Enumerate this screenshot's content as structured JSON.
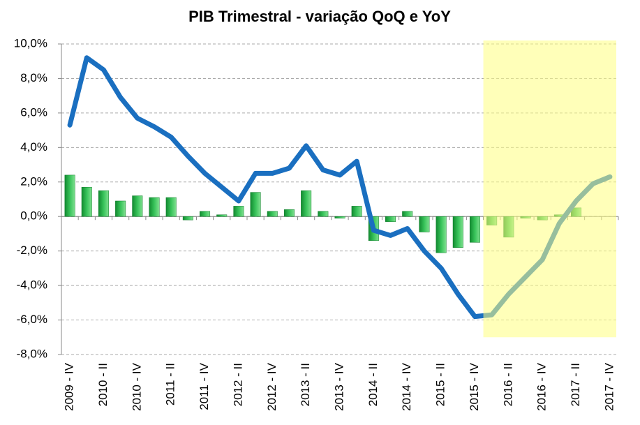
{
  "chart_data": {
    "type": "bar-line",
    "title": "PIB Trimestral - variação QoQ e YoY",
    "categories": [
      "2009 - IV",
      null,
      "2010 - II",
      null,
      "2010 - IV",
      null,
      "2011 - II",
      null,
      "2011 - IV",
      null,
      "2012 - II",
      null,
      "2012 - IV",
      null,
      "2013 - II",
      null,
      "2013 - IV",
      null,
      "2014 - II",
      null,
      "2014 - IV",
      null,
      "2015 - II",
      null,
      "2015 - IV",
      null,
      "2016 - II",
      null,
      "2016 - IV",
      null,
      "2017 - II",
      null,
      "2017 - IV"
    ],
    "series": [
      {
        "type": "bar",
        "color": "#22a845",
        "values": [
          2.4,
          1.7,
          1.5,
          0.9,
          1.2,
          1.1,
          1.1,
          -0.2,
          0.3,
          0.1,
          0.6,
          1.4,
          0.3,
          0.4,
          1.5,
          0.3,
          -0.1,
          0.6,
          -1.4,
          -0.3,
          0.3,
          -0.9,
          -2.1,
          -1.8,
          -1.5,
          -0.5,
          -1.2,
          -0.1,
          -0.2,
          0.1,
          0.5,
          null,
          null
        ]
      },
      {
        "type": "line",
        "color": "#1a6fc0",
        "values": [
          5.3,
          9.2,
          8.5,
          6.9,
          5.7,
          5.2,
          4.6,
          3.5,
          2.5,
          1.7,
          0.9,
          2.5,
          2.5,
          2.8,
          4.1,
          2.7,
          2.4,
          3.2,
          -0.8,
          -1.1,
          -0.7,
          -2.0,
          -3.0,
          -4.5,
          -5.8,
          -5.7,
          -4.5,
          -3.5,
          -2.5,
          -0.4,
          0.9,
          1.9,
          2.3
        ]
      }
    ],
    "ylim": [
      -8,
      10
    ],
    "yticks": [
      {
        "value": -8,
        "label": "-8,0%"
      },
      {
        "value": -6,
        "label": "-6,0%"
      },
      {
        "value": -4,
        "label": "-4,0%"
      },
      {
        "value": -2,
        "label": "-2,0%"
      },
      {
        "value": 0,
        "label": "0,0%"
      },
      {
        "value": 2,
        "label": "2,0%"
      },
      {
        "value": 4,
        "label": "4,0%"
      },
      {
        "value": 6,
        "label": "6,0%"
      },
      {
        "value": 8,
        "label": "8,0%"
      },
      {
        "value": 10,
        "label": "10,0%"
      }
    ],
    "grid": true
  }
}
